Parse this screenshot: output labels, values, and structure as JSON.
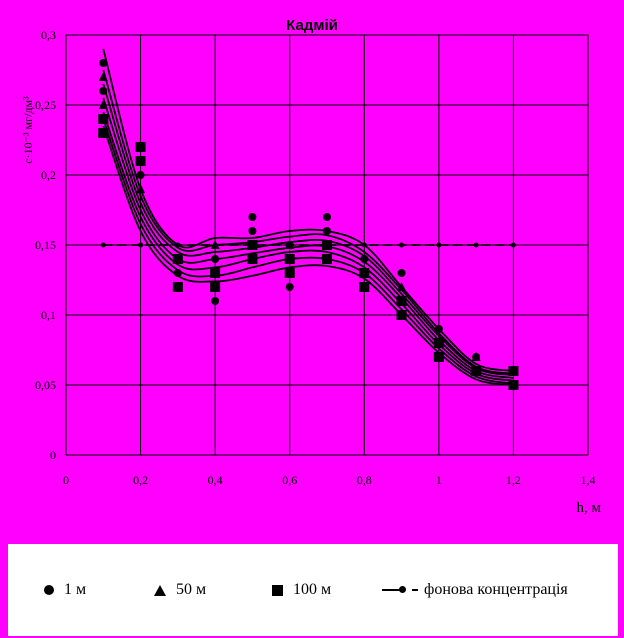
{
  "chart_data": {
    "type": "scatter",
    "title": "Кадмій",
    "ylabel": "c·10⁻³ мг/дм³",
    "xlabel": "h, м",
    "xlim": [
      0,
      1.4
    ],
    "ylim": [
      0,
      0.3
    ],
    "x_ticks": [
      "0",
      "0,2",
      "0,4",
      "0,6",
      "0,8",
      "1",
      "1,2",
      "1,4"
    ],
    "y_ticks": [
      "0",
      "0,05",
      "0,1",
      "0,15",
      "0,2",
      "0,25",
      "0,3"
    ],
    "grid": true,
    "legend_position": "bottom",
    "series": [
      {
        "name": "1 м",
        "marker": "circle",
        "x": [
          0.1,
          0.1,
          0.1,
          0.2,
          0.2,
          0.3,
          0.3,
          0.4,
          0.4,
          0.5,
          0.5,
          0.6,
          0.6,
          0.7,
          0.7,
          0.8,
          0.8,
          0.9,
          0.9,
          1.0,
          1.0,
          1.1,
          1.1,
          1.2,
          1.2
        ],
        "y": [
          0.28,
          0.26,
          0.24,
          0.22,
          0.2,
          0.13,
          0.12,
          0.14,
          0.11,
          0.17,
          0.16,
          0.15,
          0.12,
          0.17,
          0.16,
          0.14,
          0.12,
          0.13,
          0.11,
          0.09,
          0.08,
          0.07,
          0.06,
          0.06,
          0.05
        ]
      },
      {
        "name": "50 м",
        "marker": "triangle",
        "x": [
          0.1,
          0.1,
          0.2,
          0.2,
          0.3,
          0.3,
          0.4,
          0.4,
          0.5,
          0.5,
          0.6,
          0.6,
          0.7,
          0.7,
          0.8,
          0.8,
          0.9,
          0.9,
          1.0,
          1.0,
          1.1,
          1.1,
          1.2,
          1.2
        ],
        "y": [
          0.27,
          0.25,
          0.21,
          0.19,
          0.14,
          0.12,
          0.15,
          0.13,
          0.15,
          0.14,
          0.15,
          0.13,
          0.15,
          0.14,
          0.13,
          0.12,
          0.12,
          0.1,
          0.08,
          0.07,
          0.07,
          0.06,
          0.06,
          0.05
        ]
      },
      {
        "name": "100 м",
        "marker": "square",
        "x": [
          0.1,
          0.1,
          0.2,
          0.2,
          0.3,
          0.3,
          0.4,
          0.4,
          0.5,
          0.5,
          0.6,
          0.6,
          0.7,
          0.7,
          0.8,
          0.8,
          0.9,
          0.9,
          1.0,
          1.0,
          1.1,
          1.1,
          1.2,
          1.2
        ],
        "y": [
          0.24,
          0.23,
          0.22,
          0.21,
          0.14,
          0.12,
          0.13,
          0.12,
          0.15,
          0.14,
          0.14,
          0.13,
          0.15,
          0.14,
          0.13,
          0.12,
          0.11,
          0.1,
          0.08,
          0.07,
          0.06,
          0.06,
          0.06,
          0.05
        ]
      },
      {
        "name": "фонова концентрація",
        "marker": "circle-dash",
        "x": [
          0.1,
          0.2,
          0.3,
          0.4,
          0.5,
          0.6,
          0.7,
          0.8,
          0.9,
          1.0,
          1.1,
          1.2
        ],
        "y": [
          0.15,
          0.15,
          0.15,
          0.15,
          0.15,
          0.15,
          0.15,
          0.15,
          0.15,
          0.15,
          0.15,
          0.15
        ]
      }
    ],
    "trend_curves": [
      {
        "x": [
          0.1,
          0.2,
          0.3,
          0.4,
          0.5,
          0.6,
          0.7,
          0.8,
          0.9,
          1.0,
          1.1,
          1.2
        ],
        "y": [
          0.29,
          0.19,
          0.15,
          0.155,
          0.155,
          0.16,
          0.16,
          0.15,
          0.12,
          0.09,
          0.065,
          0.06
        ]
      },
      {
        "x": [
          0.1,
          0.2,
          0.3,
          0.4,
          0.5,
          0.6,
          0.7,
          0.8,
          0.9,
          1.0,
          1.1,
          1.2
        ],
        "y": [
          0.275,
          0.185,
          0.148,
          0.15,
          0.152,
          0.156,
          0.157,
          0.145,
          0.118,
          0.087,
          0.063,
          0.058
        ]
      },
      {
        "x": [
          0.1,
          0.2,
          0.3,
          0.4,
          0.5,
          0.6,
          0.7,
          0.8,
          0.9,
          1.0,
          1.1,
          1.2
        ],
        "y": [
          0.265,
          0.18,
          0.145,
          0.145,
          0.148,
          0.152,
          0.153,
          0.142,
          0.115,
          0.085,
          0.062,
          0.057
        ]
      },
      {
        "x": [
          0.1,
          0.2,
          0.3,
          0.4,
          0.5,
          0.6,
          0.7,
          0.8,
          0.9,
          1.0,
          1.1,
          1.2
        ],
        "y": [
          0.255,
          0.175,
          0.14,
          0.14,
          0.144,
          0.148,
          0.149,
          0.138,
          0.112,
          0.082,
          0.06,
          0.055
        ]
      },
      {
        "x": [
          0.1,
          0.2,
          0.3,
          0.4,
          0.5,
          0.6,
          0.7,
          0.8,
          0.9,
          1.0,
          1.1,
          1.2
        ],
        "y": [
          0.245,
          0.17,
          0.136,
          0.134,
          0.14,
          0.145,
          0.145,
          0.134,
          0.108,
          0.079,
          0.058,
          0.053
        ]
      },
      {
        "x": [
          0.1,
          0.2,
          0.3,
          0.4,
          0.5,
          0.6,
          0.7,
          0.8,
          0.9,
          1.0,
          1.1,
          1.2
        ],
        "y": [
          0.24,
          0.165,
          0.132,
          0.128,
          0.134,
          0.14,
          0.14,
          0.13,
          0.104,
          0.076,
          0.056,
          0.051
        ]
      },
      {
        "x": [
          0.1,
          0.2,
          0.3,
          0.4,
          0.5,
          0.6,
          0.7,
          0.8,
          0.9,
          1.0,
          1.1,
          1.2
        ],
        "y": [
          0.235,
          0.16,
          0.128,
          0.124,
          0.128,
          0.134,
          0.135,
          0.126,
          0.1,
          0.073,
          0.054,
          0.05
        ]
      }
    ]
  },
  "legend": {
    "items": [
      {
        "label": "1 м"
      },
      {
        "label": "50 м"
      },
      {
        "label": "100 м"
      },
      {
        "label": "фонова концентрація"
      }
    ]
  }
}
